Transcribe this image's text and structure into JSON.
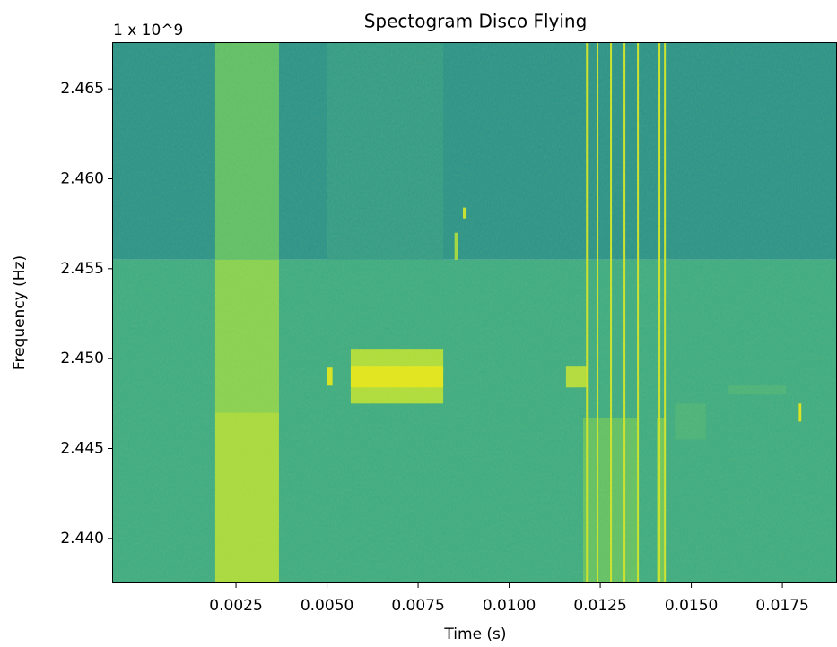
{
  "chart_data": {
    "type": "spectrogram",
    "title": "Spectogram Disco Flying",
    "offset_text": "1 x 10^9",
    "x_label": "Time (s)",
    "y_label": "Frequency (Hz)",
    "xlim": [
      -0.0009,
      0.019
    ],
    "ylim": [
      2.4375,
      2.4676
    ],
    "xticks": [
      0.0025,
      {
        "value": 0.005,
        "label": "0.0050"
      },
      0.0075,
      {
        "value": 0.01,
        "label": "0.0100"
      },
      0.0125,
      {
        "value": 0.015,
        "label": "0.0150"
      },
      0.0175
    ],
    "yticks": [
      {
        "value": 2.44,
        "label": "2.440"
      },
      2.445,
      {
        "value": 2.45,
        "label": "2.450"
      },
      2.455,
      {
        "value": 2.46,
        "label": "2.460"
      },
      2.465
    ],
    "bands": [
      {
        "y": [
          2.4555,
          2.4676
        ],
        "color": "#27908a"
      },
      {
        "y": [
          2.4375,
          2.4555
        ],
        "color": "#3aa983"
      }
    ],
    "bursts": [
      {
        "x": [
          0.00193,
          0.00368
        ],
        "y": [
          2.4555,
          2.4676
        ],
        "color": "#5cbd68"
      },
      {
        "x": [
          0.00193,
          0.00368
        ],
        "y": [
          2.447,
          2.4555
        ],
        "color": "#86cf52"
      },
      {
        "x": [
          0.00193,
          0.00368
        ],
        "y": [
          2.4375,
          2.447
        ],
        "color": "#a6d83e"
      },
      {
        "x": [
          0.005,
          0.00819
        ],
        "y": [
          2.4555,
          2.4676
        ],
        "color": "#2f9987"
      },
      {
        "x": [
          0.00565,
          0.00819
        ],
        "y": [
          2.4475,
          2.4505
        ],
        "color": "#addb3b"
      },
      {
        "x": [
          0.00565,
          0.00819
        ],
        "y": [
          2.4484,
          2.4496
        ],
        "color": "#e1e51c"
      },
      {
        "x": [
          0.005,
          0.00515
        ],
        "y": [
          2.4485,
          2.4495
        ],
        "color": "#d8e21f"
      },
      {
        "x": [
          0.0085,
          0.0086
        ],
        "y": [
          2.4555,
          2.457
        ],
        "color": "#9ed641"
      },
      {
        "x": [
          0.00873,
          0.00883
        ],
        "y": [
          2.4578,
          2.4584
        ],
        "color": "#c4df2f"
      },
      {
        "x": [
          0.01156,
          0.01213
        ],
        "y": [
          2.4484,
          2.4496
        ],
        "color": "#b0db3c"
      },
      {
        "x": [
          0.01203,
          0.01355
        ],
        "y": [
          2.4375,
          2.4467
        ],
        "color": "#5fbe66"
      },
      {
        "x": [
          0.01405,
          0.0143
        ],
        "y": [
          2.4375,
          2.4467
        ],
        "color": "#6cc35e"
      },
      {
        "x": [
          0.01211,
          0.01216
        ],
        "y": [
          2.4375,
          2.4676
        ],
        "color": "#c9e12c"
      },
      {
        "x": [
          0.0124,
          0.01245
        ],
        "y": [
          2.4375,
          2.4676
        ],
        "color": "#c9e12c"
      },
      {
        "x": [
          0.01277,
          0.01282
        ],
        "y": [
          2.4375,
          2.4676
        ],
        "color": "#c9e12c"
      },
      {
        "x": [
          0.01314,
          0.01319
        ],
        "y": [
          2.4375,
          2.4676
        ],
        "color": "#c9e12c"
      },
      {
        "x": [
          0.01351,
          0.01356
        ],
        "y": [
          2.4375,
          2.4676
        ],
        "color": "#c9e12c"
      },
      {
        "x": [
          0.0141,
          0.01415
        ],
        "y": [
          2.4375,
          2.4676
        ],
        "color": "#c9e12c"
      },
      {
        "x": [
          0.01425,
          0.0143
        ],
        "y": [
          2.4375,
          2.4676
        ],
        "color": "#c9e12c"
      },
      {
        "x": [
          0.01455,
          0.0154
        ],
        "y": [
          2.4455,
          2.4475
        ],
        "color": "#47b07b"
      },
      {
        "x": [
          0.016,
          0.0176
        ],
        "y": [
          2.448,
          2.4485
        ],
        "color": "#47b07b"
      },
      {
        "x": [
          0.01795,
          0.01802
        ],
        "y": [
          2.4465,
          2.4475
        ],
        "color": "#dce31d"
      }
    ]
  }
}
